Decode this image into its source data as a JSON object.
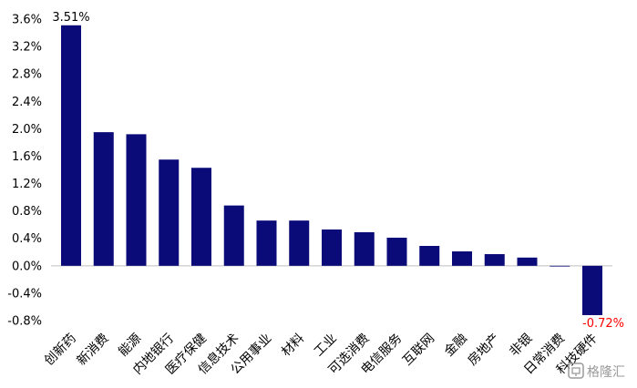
{
  "chart_data": {
    "type": "bar",
    "title": "",
    "xlabel": "",
    "ylabel": "",
    "ylim": [
      -0.8,
      3.6
    ],
    "yticks": [
      "3.6%",
      "3.2%",
      "2.8%",
      "2.4%",
      "2.0%",
      "1.6%",
      "1.2%",
      "0.8%",
      "0.4%",
      "0.0%",
      "-0.4%",
      "-0.8%"
    ],
    "ytick_values": [
      3.6,
      3.2,
      2.8,
      2.4,
      2.0,
      1.6,
      1.2,
      0.8,
      0.4,
      0.0,
      -0.4,
      -0.8
    ],
    "categories": [
      "创新药",
      "新消费",
      "能源",
      "内地银行",
      "医疗保健",
      "信息技术",
      "公用事业",
      "材料",
      "工业",
      "可选消费",
      "电信服务",
      "互联网",
      "金融",
      "房地产",
      "非银",
      "日常消费",
      "科技硬件"
    ],
    "values": [
      3.51,
      1.95,
      1.92,
      1.55,
      1.43,
      0.88,
      0.66,
      0.66,
      0.53,
      0.49,
      0.41,
      0.29,
      0.21,
      0.17,
      0.12,
      -0.01,
      -0.72
    ],
    "data_labels": [
      {
        "index": 0,
        "text": "3.51%"
      },
      {
        "index": 16,
        "text": "-0.72%"
      }
    ],
    "grid": false,
    "legend": "none",
    "colors": {
      "bar": "#0a0a78",
      "positive_tick": "#000000",
      "negative_tick": "#ff0000",
      "negative_label": "#ff0000",
      "axis": "#bfbfbf"
    }
  },
  "watermark": {
    "text": "格隆汇",
    "icon": "gelonghui-logo-icon"
  }
}
